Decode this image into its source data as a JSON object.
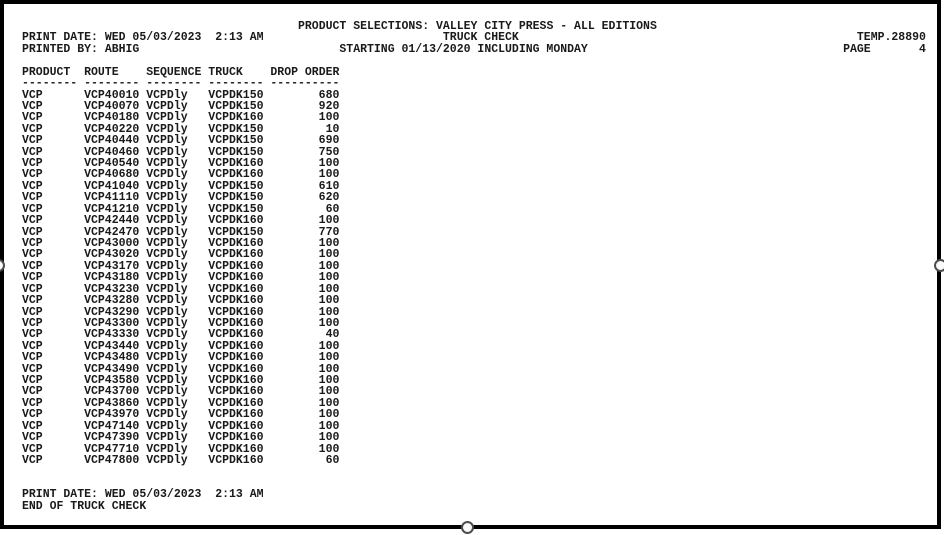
{
  "header": {
    "product_selections": "PRODUCT SELECTIONS: VALLEY CITY PRESS - ALL EDITIONS",
    "print_date": "PRINT DATE: WED 05/03/2023  2:13 AM",
    "printed_by": "PRINTED BY: ABHIG",
    "report_title": "TRUCK CHECK",
    "starting": "STARTING 01/13/2020 INCLUDING MONDAY",
    "temp_ref": "TEMP.28890",
    "page_label": "PAGE",
    "page_number": "4"
  },
  "table": {
    "columns": [
      "PRODUCT",
      "ROUTE",
      "SEQUENCE",
      "TRUCK",
      "DROP ORDER"
    ],
    "underlines": [
      "--------",
      "--------",
      "--------",
      "--------",
      "----------"
    ],
    "rows": [
      [
        "VCP",
        "VCP40010",
        "VCPDly",
        "VCPDK150",
        "680"
      ],
      [
        "VCP",
        "VCP40070",
        "VCPDly",
        "VCPDK150",
        "920"
      ],
      [
        "VCP",
        "VCP40180",
        "VCPDly",
        "VCPDK160",
        "100"
      ],
      [
        "VCP",
        "VCP40220",
        "VCPDly",
        "VCPDK150",
        "10"
      ],
      [
        "VCP",
        "VCP40440",
        "VCPDly",
        "VCPDK150",
        "690"
      ],
      [
        "VCP",
        "VCP40460",
        "VCPDly",
        "VCPDK150",
        "750"
      ],
      [
        "VCP",
        "VCP40540",
        "VCPDly",
        "VCPDK160",
        "100"
      ],
      [
        "VCP",
        "VCP40680",
        "VCPDly",
        "VCPDK160",
        "100"
      ],
      [
        "VCP",
        "VCP41040",
        "VCPDly",
        "VCPDK150",
        "610"
      ],
      [
        "VCP",
        "VCP41110",
        "VCPDly",
        "VCPDK150",
        "620"
      ],
      [
        "VCP",
        "VCP41210",
        "VCPDly",
        "VCPDK150",
        "60"
      ],
      [
        "VCP",
        "VCP42440",
        "VCPDly",
        "VCPDK160",
        "100"
      ],
      [
        "VCP",
        "VCP42470",
        "VCPDly",
        "VCPDK150",
        "770"
      ],
      [
        "VCP",
        "VCP43000",
        "VCPDly",
        "VCPDK160",
        "100"
      ],
      [
        "VCP",
        "VCP43020",
        "VCPDly",
        "VCPDK160",
        "100"
      ],
      [
        "VCP",
        "VCP43170",
        "VCPDly",
        "VCPDK160",
        "100"
      ],
      [
        "VCP",
        "VCP43180",
        "VCPDly",
        "VCPDK160",
        "100"
      ],
      [
        "VCP",
        "VCP43230",
        "VCPDly",
        "VCPDK160",
        "100"
      ],
      [
        "VCP",
        "VCP43280",
        "VCPDly",
        "VCPDK160",
        "100"
      ],
      [
        "VCP",
        "VCP43290",
        "VCPDly",
        "VCPDK160",
        "100"
      ],
      [
        "VCP",
        "VCP43300",
        "VCPDly",
        "VCPDK160",
        "100"
      ],
      [
        "VCP",
        "VCP43330",
        "VCPDly",
        "VCPDK160",
        "40"
      ],
      [
        "VCP",
        "VCP43440",
        "VCPDly",
        "VCPDK160",
        "100"
      ],
      [
        "VCP",
        "VCP43480",
        "VCPDly",
        "VCPDK160",
        "100"
      ],
      [
        "VCP",
        "VCP43490",
        "VCPDly",
        "VCPDK160",
        "100"
      ],
      [
        "VCP",
        "VCP43580",
        "VCPDly",
        "VCPDK160",
        "100"
      ],
      [
        "VCP",
        "VCP43700",
        "VCPDly",
        "VCPDK160",
        "100"
      ],
      [
        "VCP",
        "VCP43860",
        "VCPDly",
        "VCPDK160",
        "100"
      ],
      [
        "VCP",
        "VCP43970",
        "VCPDly",
        "VCPDK160",
        "100"
      ],
      [
        "VCP",
        "VCP47140",
        "VCPDly",
        "VCPDK160",
        "100"
      ],
      [
        "VCP",
        "VCP47390",
        "VCPDly",
        "VCPDK160",
        "100"
      ],
      [
        "VCP",
        "VCP47710",
        "VCPDly",
        "VCPDK160",
        "100"
      ],
      [
        "VCP",
        "VCP47800",
        "VCPDly",
        "VCPDK160",
        "60"
      ]
    ]
  },
  "footer": {
    "print_date": "PRINT DATE: WED 05/03/2023  2:13 AM",
    "end_of_report": "END OF TRUCK CHECK"
  },
  "colors": {
    "page_border": "#000000",
    "text": "#1a1a1a",
    "handle_ring": "#4d4d4d"
  }
}
